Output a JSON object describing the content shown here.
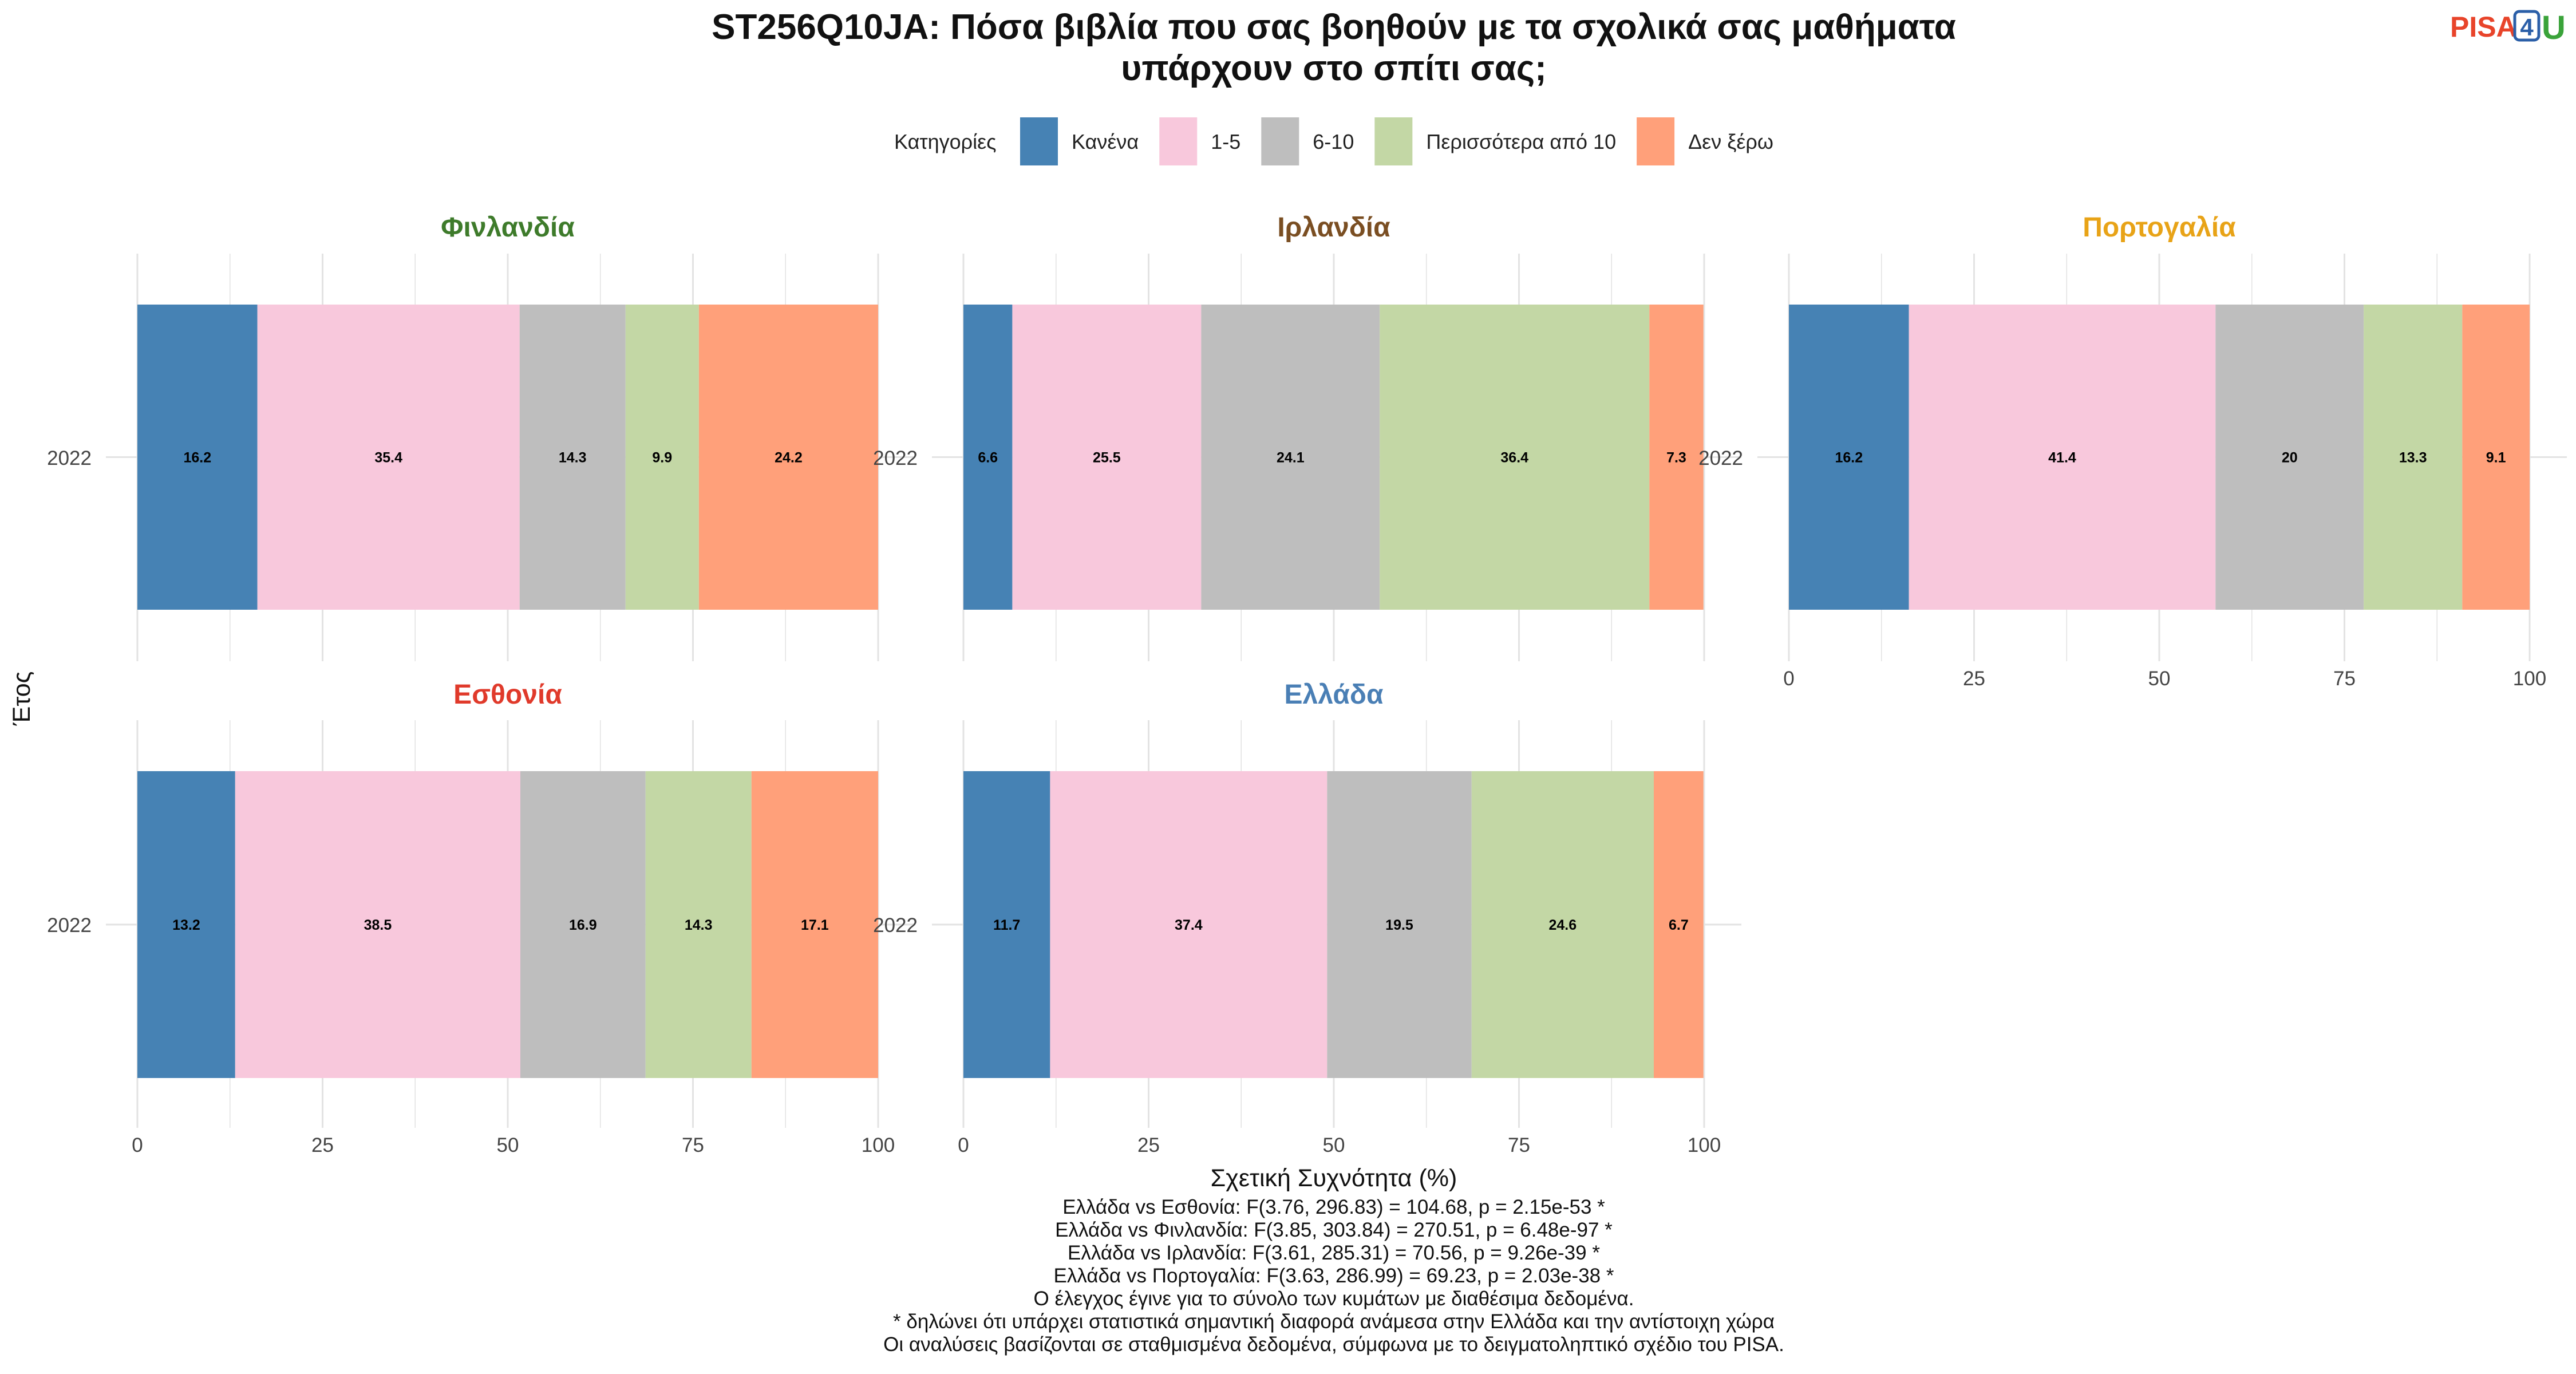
{
  "title_lines": [
    "ST256Q10JA: Πόσα βιβλία που σας βοηθούν με τα σχολικά σας μαθήματα",
    "υπάρχουν στο σπίτι σας;"
  ],
  "logo": {
    "text_pisa": "PISA",
    "text_4": "4",
    "text_u": "U"
  },
  "legend": {
    "title": "Κατηγορίες",
    "position": "top"
  },
  "chart_data": {
    "type": "bar",
    "orientation": "horizontal-stacked",
    "xlabel": "Σχετική Συχνότητα (%)",
    "ylabel": "Έτος",
    "xlim": [
      0,
      100
    ],
    "x_ticks": [
      0,
      25,
      50,
      75,
      100
    ],
    "categories": [
      "2022"
    ],
    "series": [
      {
        "name": "Κανένα",
        "color": "#4682b4"
      },
      {
        "name": "1-5",
        "color": "#f8c8dc"
      },
      {
        "name": "6-10",
        "color": "#bebebe"
      },
      {
        "name": "Περισσότερα από 10",
        "color": "#c3d7a5"
      },
      {
        "name": "Δεν ξέρω",
        "color": "#ffa07a"
      }
    ],
    "panels": [
      {
        "country": "Φινλανδία",
        "title_color": "#3e7b2b",
        "year": "2022",
        "values": [
          16.2,
          35.4,
          14.3,
          9.9,
          24.2
        ]
      },
      {
        "country": "Ιρλανδία",
        "title_color": "#7a4e22",
        "year": "2022",
        "values": [
          6.6,
          25.5,
          24.1,
          36.4,
          7.3
        ]
      },
      {
        "country": "Πορτογαλία",
        "title_color": "#e8a317",
        "year": "2022",
        "values": [
          16.2,
          41.4,
          20,
          13.3,
          9.1
        ]
      },
      {
        "country": "Εσθονία",
        "title_color": "#e03a2b",
        "year": "2022",
        "values": [
          13.2,
          38.5,
          16.9,
          14.3,
          17.1
        ]
      },
      {
        "country": "Ελλάδα",
        "title_color": "#4a7fb5",
        "year": "2022",
        "values": [
          11.7,
          37.4,
          19.5,
          24.6,
          6.7
        ]
      }
    ],
    "grid": true
  },
  "caption_lines": [
    "Ελλάδα vs Εσθονία: F(3.76, 296.83) = 104.68, p = 2.15e-53 *",
    "Ελλάδα vs Φινλανδία: F(3.85, 303.84) = 270.51, p = 6.48e-97 *",
    "Ελλάδα vs Ιρλανδία: F(3.61, 285.31) = 70.56, p = 9.26e-39 *",
    "Ελλάδα vs Πορτογαλία: F(3.63, 286.99) = 69.23, p = 2.03e-38 *",
    "Ο έλεγχος έγινε για το σύνολο των κυμάτων με διαθέσιμα δεδομένα.",
    "* δηλώνει ότι υπάρχει στατιστικά σημαντική διαφορά ανάμεσα στην Ελλάδα και την αντίστοιχη χώρα",
    "Οι αναλύσεις βασίζονται σε σταθμισμένα δεδομένα, σύμφωνα με το δειγματοληπτικό σχέδιο του PISA."
  ]
}
